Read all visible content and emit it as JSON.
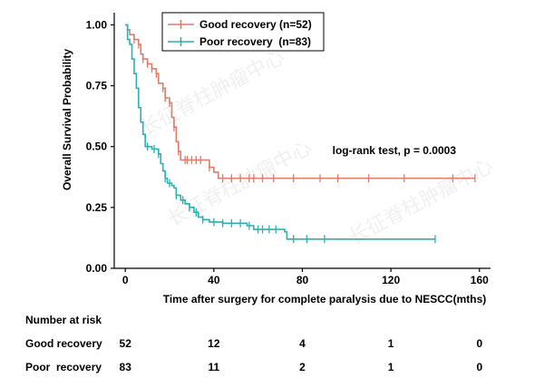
{
  "chart_data": {
    "type": "line",
    "subtype": "kaplan-meier",
    "xlabel": "Time after surgery for complete paralysis due to NESCC(mths)",
    "ylabel": "Overall Survival Probability",
    "xlim": [
      -5,
      165
    ],
    "ylim": [
      0,
      1.05
    ],
    "x_ticks": [
      0,
      40,
      80,
      120,
      160
    ],
    "x_tick_labels": [
      "0",
      "40",
      "80",
      "120",
      "160"
    ],
    "y_ticks": [
      0,
      0.25,
      0.5,
      0.75,
      1.0
    ],
    "y_tick_labels": [
      "0.00",
      "0.25",
      "0.50",
      "0.75",
      "1.00"
    ],
    "grid": false,
    "legend_position": "top-center",
    "annotation": "log-rank test, p = 0.0003",
    "series": [
      {
        "name": "Good recovery (n=52)",
        "color": "#e07b6c",
        "steps": [
          [
            0,
            1.0
          ],
          [
            1,
            0.98
          ],
          [
            2,
            0.96
          ],
          [
            4,
            0.94
          ],
          [
            6,
            0.92
          ],
          [
            7,
            0.88
          ],
          [
            8,
            0.86
          ],
          [
            10,
            0.84
          ],
          [
            12,
            0.82
          ],
          [
            14,
            0.8
          ],
          [
            15,
            0.76
          ],
          [
            17,
            0.74
          ],
          [
            18,
            0.7
          ],
          [
            20,
            0.68
          ],
          [
            21,
            0.62
          ],
          [
            22,
            0.58
          ],
          [
            23,
            0.52
          ],
          [
            24,
            0.48
          ],
          [
            25,
            0.445
          ],
          [
            38,
            0.415
          ],
          [
            40,
            0.395
          ],
          [
            42,
            0.37
          ],
          [
            158,
            0.37
          ]
        ],
        "censor_times": [
          4,
          6,
          8,
          10,
          12,
          14,
          17,
          18,
          20,
          22,
          24,
          27,
          28,
          30,
          32,
          34,
          38,
          44,
          48,
          52,
          56,
          58,
          62,
          67,
          76,
          88,
          96,
          110,
          126,
          148,
          158
        ]
      },
      {
        "name": "Poor recovery  (n=83)",
        "color": "#2bb0b3",
        "steps": [
          [
            0,
            1.0
          ],
          [
            1,
            0.94
          ],
          [
            2,
            0.92
          ],
          [
            3,
            0.86
          ],
          [
            4,
            0.8
          ],
          [
            5,
            0.74
          ],
          [
            6,
            0.66
          ],
          [
            7,
            0.6
          ],
          [
            8,
            0.55
          ],
          [
            9,
            0.5
          ],
          [
            12,
            0.49
          ],
          [
            15,
            0.47
          ],
          [
            16,
            0.43
          ],
          [
            17,
            0.4
          ],
          [
            18,
            0.37
          ],
          [
            19,
            0.35
          ],
          [
            21,
            0.34
          ],
          [
            22,
            0.33
          ],
          [
            23,
            0.3
          ],
          [
            25,
            0.28
          ],
          [
            27,
            0.265
          ],
          [
            29,
            0.25
          ],
          [
            31,
            0.23
          ],
          [
            33,
            0.21
          ],
          [
            35,
            0.2
          ],
          [
            38,
            0.19
          ],
          [
            44,
            0.185
          ],
          [
            55,
            0.175
          ],
          [
            58,
            0.16
          ],
          [
            72,
            0.15
          ],
          [
            73,
            0.12
          ],
          [
            140,
            0.12
          ]
        ],
        "censor_times": [
          10,
          13,
          15,
          18,
          20,
          23,
          26,
          29,
          32,
          35,
          40,
          44,
          48,
          52,
          56,
          60,
          62,
          65,
          68,
          76,
          82,
          90,
          140
        ]
      }
    ]
  },
  "risk_table": {
    "title": "Number at risk",
    "rows": [
      {
        "label": "Good recovery",
        "values": [
          "52",
          "12",
          "4",
          "1",
          "0"
        ]
      },
      {
        "label": "Poor  recovery",
        "values": [
          "83",
          "11",
          "2",
          "1",
          "0"
        ]
      }
    ]
  },
  "watermarks": [
    "长征脊柱肿瘤中心",
    "长征脊柱肿瘤中心",
    "长征脊柱肿瘤中心"
  ]
}
